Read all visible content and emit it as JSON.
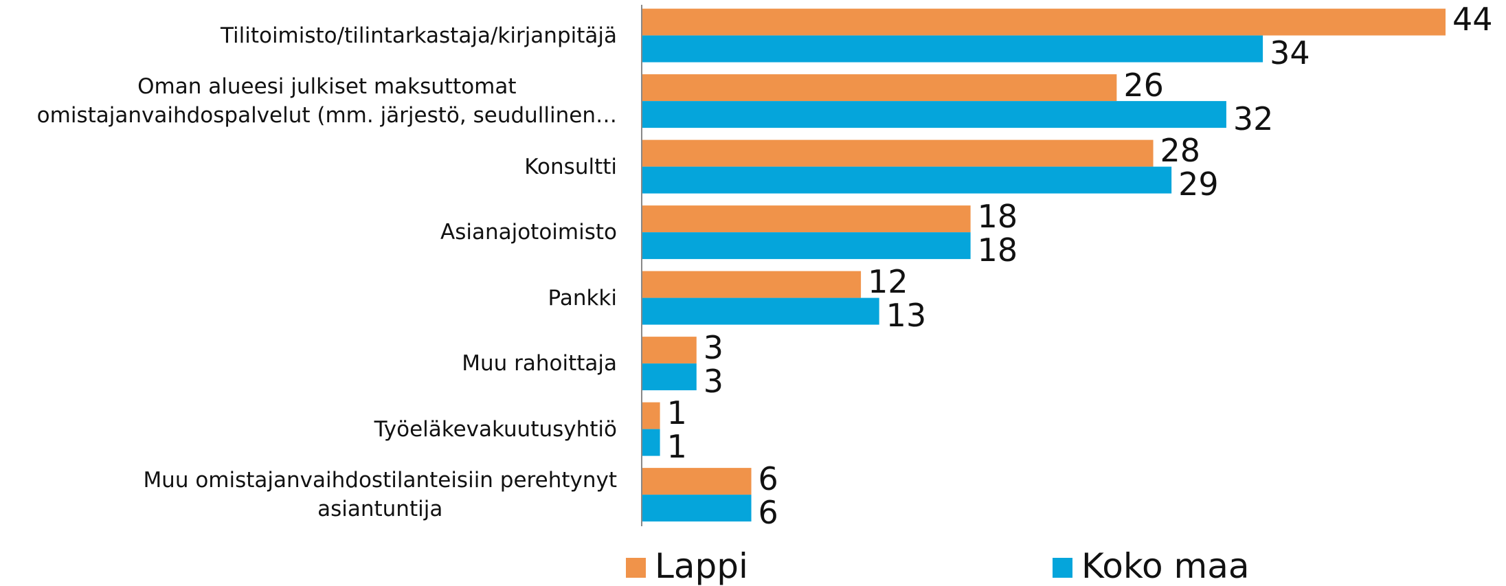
{
  "chart_data": {
    "type": "bar",
    "orientation": "horizontal",
    "categories": [
      "Tilitoimisto/tilintarkastaja/kirjanpitäjä",
      "Oman alueesi julkiset maksuttomat\nomistajanvaihdospalvelut (mm. järjestö, seudullinen…",
      "Konsultti",
      "Asianajotoimisto",
      "Pankki",
      "Muu rahoittaja",
      "Työeläkevakuutusyhtiö",
      "Muu omistajanvaihdostilanteisiin perehtynyt\nasiantuntija"
    ],
    "series": [
      {
        "name": "Lappi",
        "color": "#f0934a",
        "values": [
          44,
          26,
          28,
          18,
          12,
          3,
          1,
          6
        ]
      },
      {
        "name": "Koko maa",
        "color": "#05a5db",
        "values": [
          34,
          32,
          29,
          18,
          13,
          3,
          1,
          6
        ]
      }
    ],
    "legend": "bottom"
  }
}
